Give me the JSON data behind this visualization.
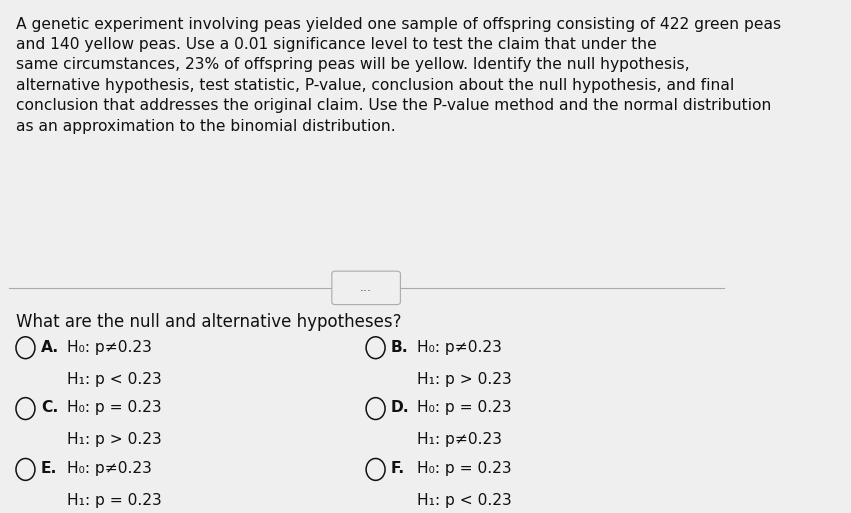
{
  "bg_color": "#efefef",
  "paragraph": "A genetic experiment involving peas yielded one sample of offspring consisting of 422 green peas\nand 140 yellow peas. Use a 0.01 significance level to test the claim that under the\nsame circumstances, 23% of offspring peas will be yellow. Identify the null hypothesis,\nalternative hypothesis, test statistic, P-value, conclusion about the null hypothesis, and final\nconclusion that addresses the original claim. Use the P-value method and the normal distribution\nas an approximation to the binomial distribution.",
  "question": "What are the null and alternative hypotheses?",
  "options": [
    {
      "label": "A.",
      "h0": "H₀: p≠0.23",
      "h1": "H₁: p < 0.23",
      "col": 0,
      "row": 0
    },
    {
      "label": "B.",
      "h0": "H₀: p≠0.23",
      "h1": "H₁: p > 0.23",
      "col": 1,
      "row": 0
    },
    {
      "label": "C.",
      "h0": "H₀: p = 0.23",
      "h1": "H₁: p > 0.23",
      "col": 0,
      "row": 1
    },
    {
      "label": "D.",
      "h0": "H₀: p = 0.23",
      "h1": "H₁: p≠0.23",
      "col": 1,
      "row": 1
    },
    {
      "label": "E.",
      "h0": "H₀: p≠0.23",
      "h1": "H₁: p = 0.23",
      "col": 0,
      "row": 2
    },
    {
      "label": "F.",
      "h0": "H₀: p = 0.23",
      "h1": "H₁: p < 0.23",
      "col": 1,
      "row": 2
    }
  ],
  "divider_dots": "...",
  "text_color": "#111111",
  "circle_color": "#111111",
  "font_size_para": 11.2,
  "font_size_question": 12,
  "font_size_options": 11.2
}
